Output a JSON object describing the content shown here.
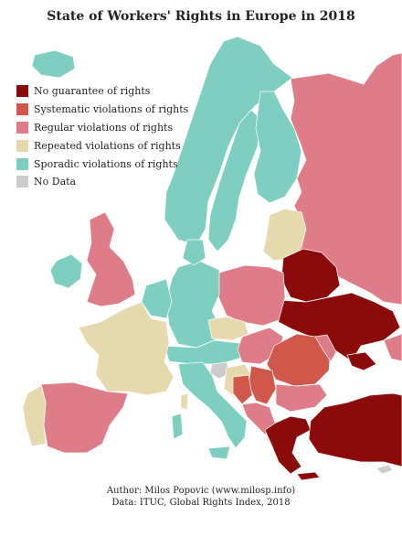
{
  "title": "State of Workers' Rights in Europe in 2018",
  "legend": [
    {
      "label": "No guarantee of rights",
      "color": "#8b0a0a"
    },
    {
      "label": "Systematic violations of rights",
      "color": "#d2574b"
    },
    {
      "label": "Regular violations of rights",
      "color": "#de7c88"
    },
    {
      "label": "Repeated violations of rights",
      "color": "#e5d9ad"
    },
    {
      "label": "Sporadic violations of rights",
      "color": "#7ecfc2"
    },
    {
      "label": "No Data",
      "color": "#cccccc"
    }
  ],
  "credits": {
    "author": "Author: Milos Popovic (www.milosp.info)",
    "data": "Data: ITUC, Global Rights Index, 2018"
  }
}
